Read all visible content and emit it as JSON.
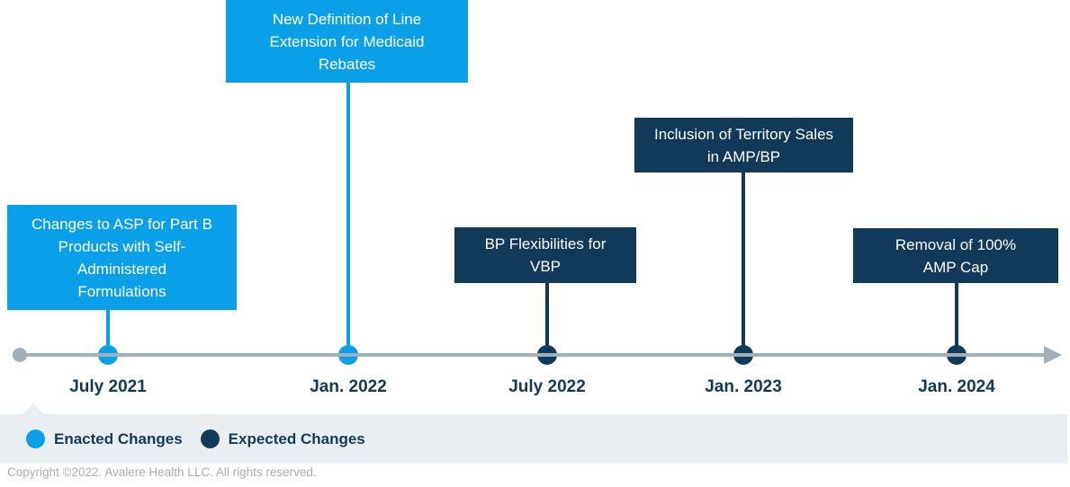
{
  "colors": {
    "enacted_blue": "#0AA0E9",
    "expected_navy": "#11395A",
    "axis_gray": "#9FB0BC",
    "legend_bg": "#E9EEF2",
    "date_text": "#11395A",
    "copyright_gray": "#ACACAC",
    "box_text": "#FFFFFF"
  },
  "timeline": {
    "events": [
      {
        "label": "Changes to ASP for Part B Products with Self-Administered Formulations",
        "date": "July 2021",
        "status": "enacted"
      },
      {
        "label": "New Definition of Line Extension for Medicaid Rebates",
        "date": "Jan. 2022",
        "status": "enacted"
      },
      {
        "label": "BP Flexibilities for VBP",
        "date": "July 2022",
        "status": "expected"
      },
      {
        "label": "Inclusion of Territory Sales in AMP/BP",
        "date": "Jan. 2023",
        "status": "expected"
      },
      {
        "label": "Removal of 100% AMP Cap",
        "date": "Jan. 2024",
        "status": "expected"
      }
    ]
  },
  "legend": {
    "items": [
      {
        "label": "Enacted Changes",
        "status": "enacted"
      },
      {
        "label": "Expected Changes",
        "status": "expected"
      }
    ]
  },
  "footer": {
    "copyright": "Copyright ©2022. Avalere Health LLC. All rights reserved."
  }
}
